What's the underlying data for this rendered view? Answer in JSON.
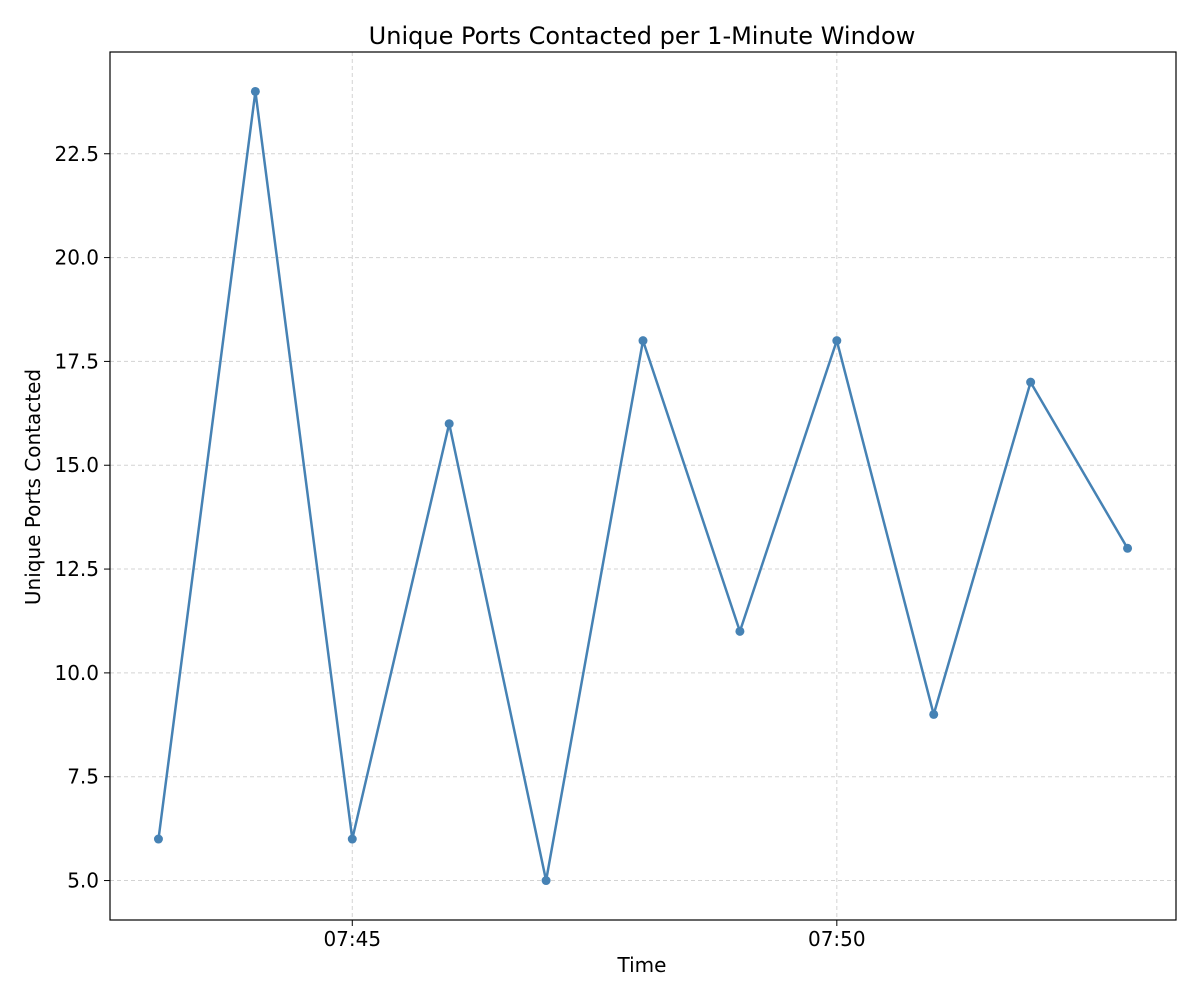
{
  "chart_data": {
    "type": "line",
    "title": "Unique Ports Contacted per 1-Minute Window",
    "xlabel": "Time",
    "ylabel": "Unique Ports Contacted",
    "x": [
      "07:43",
      "07:44",
      "07:45",
      "07:46",
      "07:47",
      "07:48",
      "07:49",
      "07:50",
      "07:51",
      "07:52",
      "07:53"
    ],
    "series": [
      {
        "values": [
          6,
          24,
          6,
          16,
          5,
          18,
          11,
          18,
          9,
          17,
          13
        ]
      }
    ],
    "xlim": [
      "07:42.5",
      "07:53.5"
    ],
    "ylim": [
      4.05,
      24.95
    ],
    "x_ticks": [
      "07:45",
      "07:50"
    ],
    "y_ticks": [
      "5.0",
      "7.5",
      "10.0",
      "12.5",
      "15.0",
      "17.5",
      "20.0",
      "22.5"
    ],
    "grid": true,
    "line_color": "#4682b4"
  }
}
